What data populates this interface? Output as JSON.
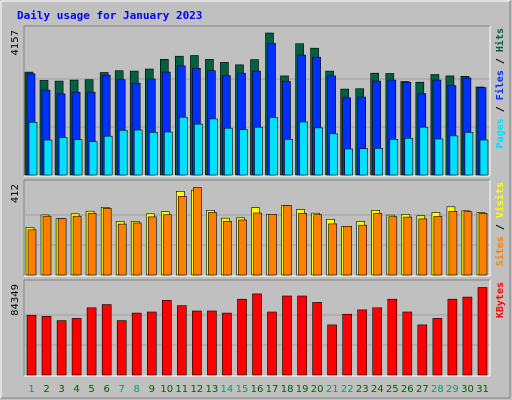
{
  "chart_data": {
    "type": "bar",
    "title": "Daily usage for January 2023",
    "x": [
      "1",
      "2",
      "3",
      "4",
      "5",
      "6",
      "7",
      "8",
      "9",
      "10",
      "11",
      "12",
      "13",
      "14",
      "15",
      "16",
      "17",
      "18",
      "19",
      "20",
      "21",
      "22",
      "23",
      "24",
      "25",
      "26",
      "27",
      "28",
      "29",
      "30",
      "31"
    ],
    "weekend_days": [
      "1",
      "7",
      "8",
      "14",
      "15",
      "21",
      "22",
      "28",
      "29"
    ],
    "panels": [
      {
        "name": "requests",
        "y_max_label": "4157",
        "ylim": [
          0,
          4157
        ],
        "legend": [
          "Pages",
          "/",
          "Files",
          "/",
          "Hits"
        ],
        "series": [
          {
            "name": "Hits",
            "values": [
              2970,
              2730,
              2710,
              2740,
              2750,
              2960,
              3010,
              3000,
              3060,
              3340,
              3430,
              3450,
              3340,
              3250,
              3180,
              3330,
              4100,
              2860,
              3790,
              3660,
              3000,
              2480,
              2490,
              2940,
              2930,
              2700,
              2680,
              2900,
              2860,
              2850,
              2540
            ]
          },
          {
            "name": "Files",
            "values": [
              2920,
              2450,
              2340,
              2390,
              2390,
              2880,
              2750,
              2650,
              2770,
              2970,
              3150,
              3080,
              3010,
              2870,
              2940,
              3000,
              3800,
              2700,
              3460,
              3400,
              2860,
              2230,
              2250,
              2710,
              2740,
              2680,
              2350,
              2740,
              2580,
              2800,
              2520
            ]
          },
          {
            "name": "Pages",
            "values": [
              1520,
              1010,
              1080,
              1020,
              960,
              1120,
              1290,
              1300,
              1230,
              1240,
              1670,
              1470,
              1620,
              1350,
              1310,
              1380,
              1660,
              1030,
              1530,
              1360,
              1190,
              750,
              760,
              770,
              1030,
              1060,
              1380,
              1040,
              1130,
              1230,
              1010
            ]
          }
        ]
      },
      {
        "name": "visitors",
        "y_max_label": "412",
        "ylim": [
          0,
          412
        ],
        "legend": [
          "Sites",
          "/",
          "Visits"
        ],
        "series": [
          {
            "name": "Visits",
            "values": [
              218,
              275,
              258,
              280,
              292,
              310,
              245,
              246,
              280,
              290,
              383,
              388,
              296,
              260,
              262,
              308,
              278,
              318,
              300,
              283,
              255,
              223,
              245,
              296,
              274,
              278,
              271,
              286,
              312,
              294,
              286
            ]
          },
          {
            "name": "Sites",
            "values": [
              207,
              269,
              258,
              269,
              282,
              305,
              233,
              238,
              266,
              276,
              360,
              400,
              286,
              246,
              252,
              284,
              278,
              318,
              282,
              276,
              234,
              223,
              228,
              282,
              267,
              265,
              257,
              268,
              291,
              290,
              282
            ]
          }
        ]
      },
      {
        "name": "traffic",
        "y_max_label": "84349",
        "ylim": [
          0,
          84349
        ],
        "legend": [
          "KBytes"
        ],
        "series": [
          {
            "name": "KBytes",
            "values": [
              56000,
              55000,
              51000,
              53000,
              63000,
              66000,
              51000,
              58000,
              59000,
              70000,
              65000,
              60000,
              60000,
              58000,
              71000,
              76000,
              59000,
              74000,
              74000,
              68000,
              47000,
              57000,
              61000,
              63000,
              71000,
              59000,
              47000,
              53000,
              71000,
              73000,
              82000
            ]
          }
        ]
      }
    ]
  },
  "colors": {
    "background": "#ffffff",
    "frame": "#c0c0c0",
    "panel": "#c0c0c0",
    "title": "#0000ff",
    "hits": "#006040",
    "files": "#0030ff",
    "pages": "#00e0ff",
    "visits": "#ffff00",
    "sites": "#ff8000",
    "kbytes": "#ff0000",
    "weekday_label": "#006000",
    "weekend_label": "#00a060",
    "y_label": "#000000"
  }
}
